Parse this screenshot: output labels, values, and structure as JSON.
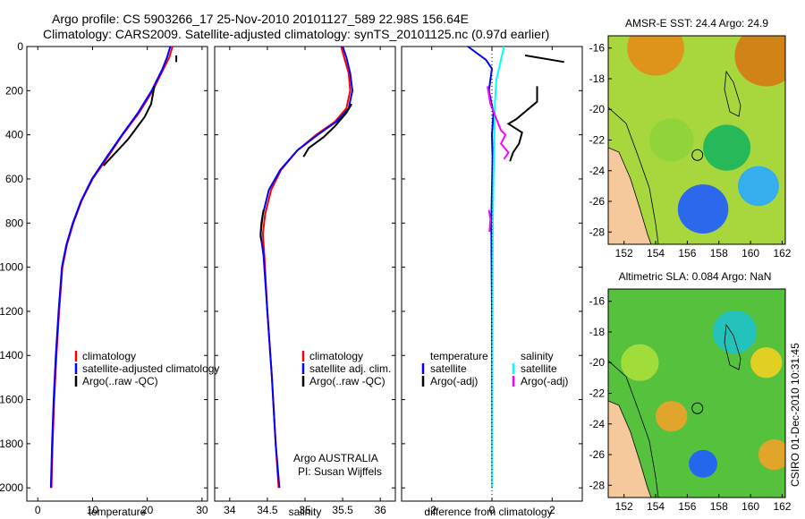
{
  "header": {
    "line1": "Argo profile: CS 5903266_17 25-Nov-2010 20101127_589 22.98S 156.64E",
    "line2": "Climatology: CARS2009. Satellite-adjusted climatology: synTS_20101125.nc (0.97d earlier)"
  },
  "footer_stamp": "CSIRO 01-Dec-2010 10:31:45",
  "colors": {
    "climatology": "#ff0000",
    "satellite": "#0000ff",
    "argo": "#000000",
    "salinity_satellite": "#00ffff",
    "salinity_argo": "#ff00ff",
    "land": "#f5c99b"
  },
  "chart_data": [
    {
      "type": "line",
      "id": "temperature",
      "xlabel": "temperature",
      "ylabel": "",
      "xlim": [
        -2,
        31
      ],
      "ylim": [
        2060,
        0
      ],
      "xticks": [
        0,
        10,
        20,
        30
      ],
      "yticks": [
        0,
        200,
        400,
        600,
        800,
        1000,
        1200,
        1400,
        1600,
        1800,
        2000
      ],
      "legend": [
        "climatology",
        "satellite-adjusted climatology",
        "Argo(..raw -QC)"
      ],
      "series": [
        {
          "name": "climatology",
          "color": "#ff0000",
          "points": [
            [
              24.6,
              0
            ],
            [
              24,
              50
            ],
            [
              23,
              100
            ],
            [
              21,
              200
            ],
            [
              18.5,
              300
            ],
            [
              15.5,
              400
            ],
            [
              12.8,
              500
            ],
            [
              10,
              600
            ],
            [
              8,
              700
            ],
            [
              6.5,
              800
            ],
            [
              5.3,
              900
            ],
            [
              4.5,
              1000
            ],
            [
              3.9,
              1200
            ],
            [
              3.4,
              1400
            ],
            [
              3,
              1600
            ],
            [
              2.7,
              1800
            ],
            [
              2.5,
              2000
            ]
          ]
        },
        {
          "name": "satellite-adjusted climatology",
          "color": "#0000ff",
          "points": [
            [
              24.2,
              0
            ],
            [
              23.6,
              50
            ],
            [
              22.8,
              100
            ],
            [
              20.8,
              200
            ],
            [
              18.3,
              300
            ],
            [
              15.4,
              400
            ],
            [
              12.6,
              500
            ],
            [
              9.9,
              600
            ],
            [
              7.9,
              700
            ],
            [
              6.4,
              800
            ],
            [
              5.2,
              900
            ],
            [
              4.4,
              1000
            ],
            [
              3.8,
              1200
            ],
            [
              3.3,
              1400
            ],
            [
              2.9,
              1600
            ],
            [
              2.6,
              1800
            ],
            [
              2.4,
              2000
            ]
          ]
        },
        {
          "name": "Argo(..raw -QC)",
          "color": "#000000",
          "points": [
            [
              21.3,
              180
            ],
            [
              20.7,
              260
            ],
            [
              19.5,
              320
            ],
            [
              16.5,
              420
            ],
            [
              13.5,
              500
            ],
            [
              12,
              540
            ]
          ]
        },
        {
          "name": "Argo surface",
          "color": "#000000",
          "points": [
            [
              25.3,
              40
            ],
            [
              25.3,
              70
            ]
          ]
        }
      ]
    },
    {
      "type": "line",
      "id": "salinity",
      "xlabel": "salinity",
      "ylabel": "",
      "xlim": [
        33.8,
        36.2
      ],
      "ylim": [
        2060,
        0
      ],
      "xticks": [
        34,
        34.5,
        35,
        35.5,
        36
      ],
      "yticks": [
        0,
        200,
        400,
        600,
        800,
        1000,
        1200,
        1400,
        1600,
        1800,
        2000
      ],
      "legend": [
        "climatology",
        "satellite adj. clim.",
        "Argo(..raw -QC)"
      ],
      "annotation": [
        "Argo AUSTRALIA",
        "PI: Susan Wijffels"
      ],
      "series": [
        {
          "name": "climatology",
          "color": "#ff0000",
          "points": [
            [
              35.48,
              0
            ],
            [
              35.52,
              50
            ],
            [
              35.58,
              120
            ],
            [
              35.6,
              200
            ],
            [
              35.55,
              280
            ],
            [
              35.4,
              340
            ],
            [
              35.15,
              400
            ],
            [
              34.9,
              470
            ],
            [
              34.68,
              560
            ],
            [
              34.55,
              650
            ],
            [
              34.47,
              760
            ],
            [
              34.44,
              850
            ],
            [
              34.46,
              950
            ],
            [
              34.5,
              1200
            ],
            [
              34.56,
              1500
            ],
            [
              34.61,
              1800
            ],
            [
              34.65,
              2000
            ]
          ]
        },
        {
          "name": "satellite adj. clim.",
          "color": "#0000ff",
          "points": [
            [
              35.5,
              0
            ],
            [
              35.55,
              50
            ],
            [
              35.6,
              120
            ],
            [
              35.63,
              200
            ],
            [
              35.58,
              280
            ],
            [
              35.42,
              340
            ],
            [
              35.17,
              400
            ],
            [
              34.9,
              470
            ],
            [
              34.67,
              560
            ],
            [
              34.52,
              650
            ],
            [
              34.44,
              760
            ],
            [
              34.41,
              850
            ],
            [
              34.45,
              950
            ],
            [
              34.5,
              1200
            ],
            [
              34.56,
              1500
            ],
            [
              34.61,
              1800
            ],
            [
              34.66,
              2000
            ]
          ]
        },
        {
          "name": "Argo(..raw -QC)",
          "color": "#000000",
          "points": [
            [
              35.62,
              260
            ],
            [
              35.55,
              300
            ],
            [
              35.4,
              360
            ],
            [
              35.25,
              410
            ],
            [
              35.05,
              460
            ],
            [
              34.98,
              500
            ]
          ]
        },
        {
          "name": "Argo deep",
          "color": "#000000",
          "points": [
            [
              34.45,
              740
            ],
            [
              34.42,
              800
            ],
            [
              34.41,
              860
            ],
            [
              34.42,
              880
            ]
          ]
        }
      ]
    },
    {
      "type": "line",
      "id": "difference",
      "xlabel": "difference from climatology",
      "ylabel": "",
      "xlim": [
        -3,
        3
      ],
      "ylim": [
        2060,
        0
      ],
      "xticks": [
        -2,
        0,
        2
      ],
      "yticks": [
        0,
        200,
        400,
        600,
        800,
        1000,
        1200,
        1400,
        1600,
        1800,
        2000
      ],
      "legend_columns": [
        {
          "header": "temperature",
          "items": [
            "satellite",
            "Argo(-adj)"
          ]
        },
        {
          "header": "salinity",
          "items": [
            "satellite",
            "Argo(-adj)"
          ]
        }
      ],
      "series": [
        {
          "name": "temperature satellite",
          "color": "#0000ff",
          "points": [
            [
              -0.8,
              0
            ],
            [
              -0.2,
              60
            ],
            [
              0,
              100
            ],
            [
              -0.1,
              200
            ],
            [
              0.05,
              300
            ],
            [
              0,
              400
            ],
            [
              0.02,
              500
            ],
            [
              -0.02,
              800
            ],
            [
              0,
              1200
            ],
            [
              0,
              1600
            ],
            [
              0,
              2000
            ]
          ]
        },
        {
          "name": "salinity satellite",
          "color": "#00ffff",
          "points": [
            [
              0.4,
              0
            ],
            [
              0.3,
              60
            ],
            [
              0.15,
              150
            ],
            [
              0.1,
              250
            ],
            [
              0.08,
              400
            ],
            [
              0.05,
              600
            ],
            [
              0.03,
              800
            ],
            [
              0.02,
              1200
            ],
            [
              0.01,
              1600
            ],
            [
              0,
              2000
            ]
          ]
        },
        {
          "name": "temperature Argo(-adj)",
          "color": "#000000",
          "points": [
            [
              1.5,
              180
            ],
            [
              1.5,
              250
            ],
            [
              0.8,
              330
            ],
            [
              0.55,
              350
            ],
            [
              1.0,
              390
            ],
            [
              0.9,
              440
            ],
            [
              0.7,
              480
            ],
            [
              0.6,
              520
            ]
          ]
        },
        {
          "name": "temperature Argo surface",
          "color": "#000000",
          "points": [
            [
              1.1,
              40
            ],
            [
              2.4,
              70
            ]
          ]
        },
        {
          "name": "salinity Argo(-adj)",
          "color": "#ff00ff",
          "points": [
            [
              -0.15,
              180
            ],
            [
              -0.05,
              260
            ],
            [
              0.3,
              380
            ],
            [
              0.45,
              400
            ],
            [
              0.3,
              440
            ],
            [
              0.55,
              480
            ],
            [
              0.4,
              510
            ]
          ]
        },
        {
          "name": "salinity Argo deep",
          "color": "#ff00ff",
          "points": [
            [
              -0.1,
              740
            ],
            [
              -0.05,
              780
            ],
            [
              -0.08,
              840
            ]
          ]
        },
        {
          "name": "zero",
          "color": "#000000",
          "dashed": true,
          "points": [
            [
              0,
              0
            ],
            [
              0,
              2060
            ]
          ]
        }
      ]
    },
    {
      "type": "heatmap",
      "id": "sst_map",
      "title": "AMSR-E SST: 24.4 Argo: 24.9",
      "xlim": [
        151,
        162.2
      ],
      "ylim": [
        -28.8,
        -15.2
      ],
      "xticks": [
        152,
        154,
        156,
        158,
        160,
        162
      ],
      "yticks": [
        -16,
        -18,
        -20,
        -22,
        -24,
        -26,
        -28
      ],
      "float_position": [
        156.64,
        -22.98
      ],
      "blobs": [
        {
          "lon": 157,
          "lat": -26.5,
          "radius": 1.6,
          "color": "#1f5cff"
        },
        {
          "lon": 160.5,
          "lat": -25,
          "radius": 1.3,
          "color": "#2aa8ff"
        },
        {
          "lon": 158.5,
          "lat": -22.5,
          "radius": 1.5,
          "color": "#19b65c"
        },
        {
          "lon": 161,
          "lat": -16.5,
          "radius": 2.0,
          "color": "#d77a13"
        },
        {
          "lon": 154,
          "lat": -16,
          "radius": 1.8,
          "color": "#e48d16"
        },
        {
          "lon": 155,
          "lat": -22,
          "radius": 1.4,
          "color": "#8fd33a"
        }
      ]
    },
    {
      "type": "heatmap",
      "id": "sla_map",
      "title": "Altimetric SLA: 0.084 Argo: NaN",
      "xlim": [
        151,
        162.2
      ],
      "ylim": [
        -28.8,
        -15.2
      ],
      "xticks": [
        152,
        154,
        156,
        158,
        160,
        162
      ],
      "yticks": [
        -16,
        -18,
        -20,
        -22,
        -24,
        -26,
        -28
      ],
      "float_position": [
        156.64,
        -22.98
      ],
      "blobs": [
        {
          "lon": 157,
          "lat": -26.6,
          "radius": 0.9,
          "color": "#1f5cff"
        },
        {
          "lon": 155,
          "lat": -23.5,
          "radius": 1.0,
          "color": "#f2a22a"
        },
        {
          "lon": 159,
          "lat": -18,
          "radius": 1.4,
          "color": "#1dc2c9"
        },
        {
          "lon": 161,
          "lat": -20,
          "radius": 1.0,
          "color": "#f2d020"
        },
        {
          "lon": 161.5,
          "lat": -26,
          "radius": 1.0,
          "color": "#f2a22a"
        },
        {
          "lon": 153,
          "lat": -20,
          "radius": 1.2,
          "color": "#a8e03a"
        }
      ]
    }
  ]
}
